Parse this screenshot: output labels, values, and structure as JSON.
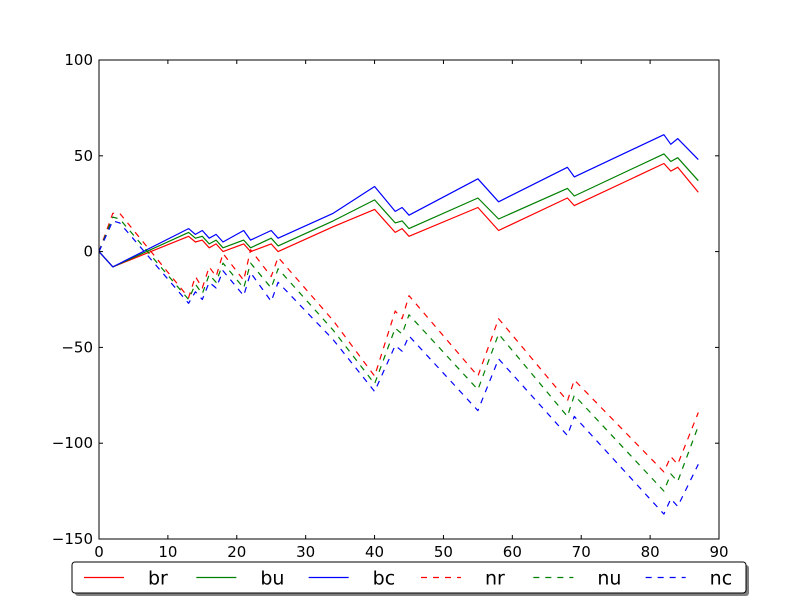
{
  "chart_data": {
    "type": "line",
    "title": "",
    "xlabel": "",
    "ylabel": "",
    "xlim": [
      0,
      90
    ],
    "ylim": [
      -150,
      100
    ],
    "x_ticks": [
      0,
      10,
      20,
      30,
      40,
      50,
      60,
      70,
      80,
      90
    ],
    "y_ticks": [
      -150,
      -100,
      -50,
      0,
      50,
      100
    ],
    "x_tick_labels": [
      "0",
      "10",
      "20",
      "30",
      "40",
      "50",
      "60",
      "70",
      "80",
      "90"
    ],
    "y_tick_labels": [
      "−150",
      "−100",
      "−50",
      "0",
      "50",
      "100"
    ],
    "grid": false,
    "legend_position": "bottom",
    "series": [
      {
        "name": "br",
        "color": "#ff0000",
        "style": "solid",
        "points": [
          [
            0,
            0
          ],
          [
            2,
            -8
          ],
          [
            13,
            8
          ],
          [
            14,
            5
          ],
          [
            15,
            6
          ],
          [
            16,
            2
          ],
          [
            17,
            4
          ],
          [
            18,
            0
          ],
          [
            21,
            4
          ],
          [
            22,
            0
          ],
          [
            25,
            4
          ],
          [
            26,
            0
          ],
          [
            34,
            13
          ],
          [
            40,
            22
          ],
          [
            43,
            10
          ],
          [
            44,
            12
          ],
          [
            45,
            8
          ],
          [
            55,
            23
          ],
          [
            58,
            11
          ],
          [
            68,
            28
          ],
          [
            69,
            24
          ],
          [
            82,
            46
          ],
          [
            83,
            42
          ],
          [
            84,
            44
          ],
          [
            87,
            31
          ]
        ]
      },
      {
        "name": "bu",
        "color": "#008000",
        "style": "solid",
        "points": [
          [
            0,
            0
          ],
          [
            2,
            -8
          ],
          [
            13,
            10
          ],
          [
            14,
            7
          ],
          [
            15,
            8
          ],
          [
            16,
            4
          ],
          [
            17,
            6
          ],
          [
            18,
            2
          ],
          [
            21,
            6
          ],
          [
            22,
            2
          ],
          [
            25,
            7
          ],
          [
            26,
            3
          ],
          [
            34,
            16
          ],
          [
            40,
            27
          ],
          [
            43,
            15
          ],
          [
            44,
            16
          ],
          [
            45,
            12
          ],
          [
            55,
            28
          ],
          [
            58,
            17
          ],
          [
            68,
            33
          ],
          [
            69,
            29
          ],
          [
            82,
            51
          ],
          [
            83,
            47
          ],
          [
            84,
            49
          ],
          [
            87,
            37
          ]
        ]
      },
      {
        "name": "bc",
        "color": "#0000ff",
        "style": "solid",
        "points": [
          [
            0,
            0
          ],
          [
            2,
            -8
          ],
          [
            13,
            12
          ],
          [
            14,
            9
          ],
          [
            15,
            11
          ],
          [
            16,
            7
          ],
          [
            17,
            9
          ],
          [
            18,
            5
          ],
          [
            21,
            11
          ],
          [
            22,
            6
          ],
          [
            25,
            11
          ],
          [
            26,
            7
          ],
          [
            34,
            20
          ],
          [
            40,
            34
          ],
          [
            43,
            21
          ],
          [
            44,
            23
          ],
          [
            45,
            19
          ],
          [
            55,
            38
          ],
          [
            58,
            26
          ],
          [
            68,
            44
          ],
          [
            69,
            39
          ],
          [
            82,
            61
          ],
          [
            83,
            56
          ],
          [
            84,
            59
          ],
          [
            87,
            48
          ]
        ]
      },
      {
        "name": "nr",
        "color": "#ff0000",
        "style": "dashed",
        "points": [
          [
            0,
            0
          ],
          [
            2,
            20
          ],
          [
            3,
            20
          ],
          [
            13,
            -24
          ],
          [
            14,
            -13
          ],
          [
            15,
            -19
          ],
          [
            16,
            -8
          ],
          [
            17,
            -13
          ],
          [
            18,
            -1
          ],
          [
            21,
            -15
          ],
          [
            22,
            1
          ],
          [
            25,
            -13
          ],
          [
            26,
            -3
          ],
          [
            34,
            -36
          ],
          [
            40,
            -65
          ],
          [
            43,
            -31
          ],
          [
            44,
            -35
          ],
          [
            45,
            -23
          ],
          [
            55,
            -65
          ],
          [
            58,
            -35
          ],
          [
            68,
            -78
          ],
          [
            69,
            -67
          ],
          [
            82,
            -115
          ],
          [
            83,
            -107
          ],
          [
            84,
            -111
          ],
          [
            87,
            -84
          ]
        ]
      },
      {
        "name": "nu",
        "color": "#008000",
        "style": "dashed",
        "points": [
          [
            0,
            0
          ],
          [
            2,
            18
          ],
          [
            3,
            17
          ],
          [
            13,
            -25
          ],
          [
            14,
            -17
          ],
          [
            15,
            -22
          ],
          [
            16,
            -12
          ],
          [
            17,
            -16
          ],
          [
            18,
            -6
          ],
          [
            21,
            -19
          ],
          [
            22,
            -6
          ],
          [
            25,
            -19
          ],
          [
            26,
            -9
          ],
          [
            34,
            -41
          ],
          [
            40,
            -69
          ],
          [
            43,
            -40
          ],
          [
            44,
            -43
          ],
          [
            45,
            -33
          ],
          [
            55,
            -72
          ],
          [
            58,
            -43
          ],
          [
            68,
            -86
          ],
          [
            69,
            -75
          ],
          [
            82,
            -125
          ],
          [
            83,
            -116
          ],
          [
            84,
            -120
          ],
          [
            87,
            -91
          ]
        ]
      },
      {
        "name": "nc",
        "color": "#0000ff",
        "style": "dashed",
        "points": [
          [
            0,
            0
          ],
          [
            2,
            16
          ],
          [
            3,
            15
          ],
          [
            13,
            -27
          ],
          [
            14,
            -21
          ],
          [
            15,
            -25
          ],
          [
            16,
            -16
          ],
          [
            17,
            -19
          ],
          [
            18,
            -10
          ],
          [
            21,
            -23
          ],
          [
            22,
            -11
          ],
          [
            25,
            -26
          ],
          [
            26,
            -16
          ],
          [
            34,
            -46
          ],
          [
            40,
            -73
          ],
          [
            43,
            -49
          ],
          [
            44,
            -52
          ],
          [
            45,
            -44
          ],
          [
            55,
            -83
          ],
          [
            58,
            -56
          ],
          [
            68,
            -96
          ],
          [
            69,
            -86
          ],
          [
            82,
            -137
          ],
          [
            83,
            -129
          ],
          [
            84,
            -133
          ],
          [
            87,
            -111
          ]
        ]
      }
    ]
  }
}
